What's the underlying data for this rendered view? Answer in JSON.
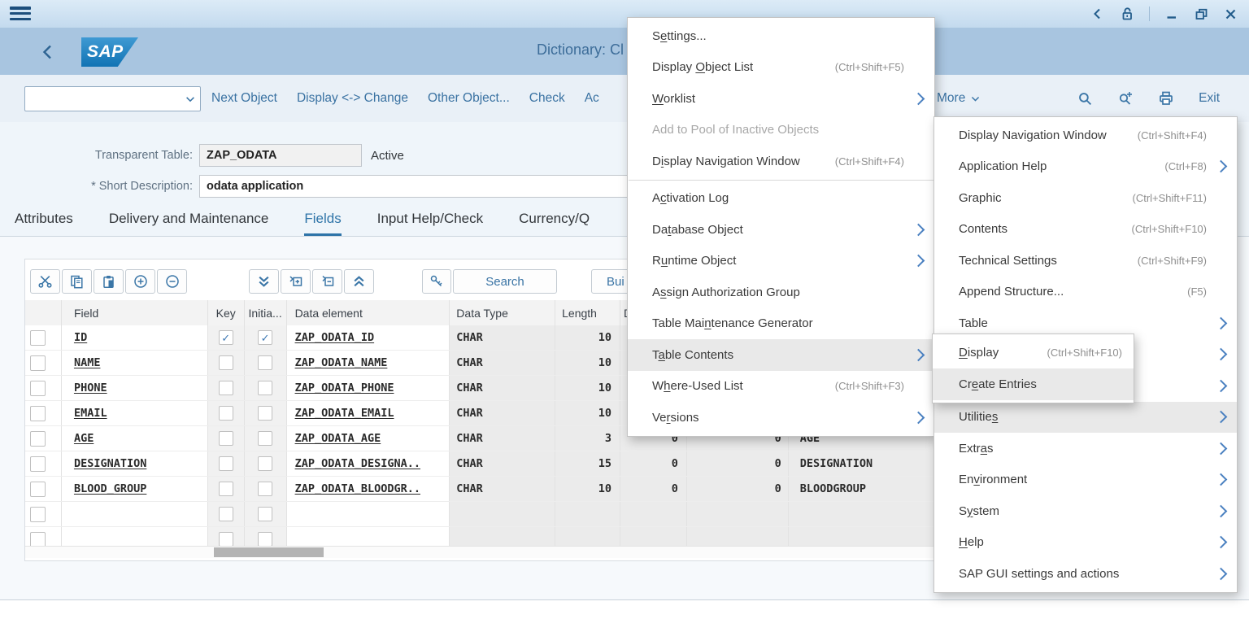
{
  "header": {
    "title": "Dictionary: Cl",
    "logo_text": "SAP"
  },
  "toolbar": {
    "combo_value": "",
    "buttons": [
      {
        "label": "Next Object"
      },
      {
        "label": "Display <-> Change"
      },
      {
        "label": "Other Object..."
      },
      {
        "label": "Check"
      },
      {
        "label": "Ac"
      }
    ],
    "more_label": "More",
    "exit_label": "Exit"
  },
  "form": {
    "table_label": "Transparent Table:",
    "table_value": "ZAP_ODATA",
    "status": "Active",
    "desc_label": "* Short Description:",
    "desc_value": "odata application"
  },
  "tabs": [
    {
      "label": "Attributes"
    },
    {
      "label": "Delivery and Maintenance"
    },
    {
      "label": "Fields",
      "selected": true
    },
    {
      "label": "Input Help/Check"
    },
    {
      "label": "Currency/Q"
    }
  ],
  "grid": {
    "search_label": "Search",
    "build_label": "Bui",
    "columns": {
      "sel": "",
      "field": "Field",
      "key": "Key",
      "init": "Initia...",
      "delem": "Data element",
      "dtype": "Data Type",
      "len": "Length",
      "dec": "D",
      "num2": "",
      "desc": ""
    },
    "rows": [
      {
        "field": "ID",
        "key": "✓",
        "init": "✓",
        "delem": "ZAP_ODATA_ID",
        "dtype": "CHAR",
        "len": "10",
        "dec": "",
        "num2": "",
        "desc": ""
      },
      {
        "field": "NAME",
        "key": "",
        "init": "",
        "delem": "ZAP_ODATA_NAME",
        "dtype": "CHAR",
        "len": "10",
        "dec": "",
        "num2": "",
        "desc": ""
      },
      {
        "field": "PHONE",
        "key": "",
        "init": "",
        "delem": "ZAP_ODATA_PHONE",
        "dtype": "CHAR",
        "len": "10",
        "dec": "",
        "num2": "",
        "desc": ""
      },
      {
        "field": "EMAIL",
        "key": "",
        "init": "",
        "delem": "ZAP_ODATA_EMAIL",
        "dtype": "CHAR",
        "len": "10",
        "dec": "",
        "num2": "",
        "desc": ""
      },
      {
        "field": "AGE",
        "key": "",
        "init": "",
        "delem": "ZAP_ODATA_AGE",
        "dtype": "CHAR",
        "len": "3",
        "dec": "0",
        "num2": "0",
        "desc": "AGE"
      },
      {
        "field": "DESIGNATION",
        "key": "",
        "init": "",
        "delem": "ZAP_ODATA_DESIGNA..",
        "dtype": "CHAR",
        "len": "15",
        "dec": "0",
        "num2": "0",
        "desc": "DESIGNATION"
      },
      {
        "field": "BLOOD_GROUP",
        "key": "",
        "init": "",
        "delem": "ZAP_ODATA_BLOODGR..",
        "dtype": "CHAR",
        "len": "10",
        "dec": "0",
        "num2": "0",
        "desc": "BLOODGROUP"
      },
      {
        "field": "",
        "key": "",
        "init": "",
        "delem": "",
        "dtype": "",
        "len": "",
        "dec": "",
        "num2": "",
        "desc": ""
      },
      {
        "field": "",
        "key": "",
        "init": "",
        "delem": "",
        "dtype": "",
        "len": "",
        "dec": "",
        "num2": "",
        "desc": ""
      }
    ]
  },
  "menus": {
    "menu1": {
      "items": [
        {
          "label": {
            "text": "Settings...",
            "u": 1
          }
        },
        {
          "label": {
            "text": "Display Object List",
            "u": 8
          },
          "shortcut": "(Ctrl+Shift+F5)"
        },
        {
          "label": {
            "text": "Worklist",
            "u": 0
          },
          "sub": true
        },
        {
          "label": {
            "text": "Add to Pool of Inactive Objects"
          },
          "disabled": true
        },
        {
          "label": {
            "text": "Display Navigation Window",
            "u": 1
          },
          "shortcut": "(Ctrl+Shift+F4)"
        },
        {
          "separator": true
        },
        {
          "label": {
            "text": "Activation Log",
            "u": 1
          }
        },
        {
          "label": {
            "text": "Database Object",
            "u": 2
          },
          "sub": true
        },
        {
          "label": {
            "text": "Runtime Object",
            "u": 1
          },
          "sub": true
        },
        {
          "label": {
            "text": "Assign Authorization Group",
            "u": 1
          }
        },
        {
          "label": {
            "text": "Table Maintenance Generator",
            "u": 9
          }
        },
        {
          "label": {
            "text": "Table Contents",
            "u": 1
          },
          "sub": true,
          "hl": true
        },
        {
          "label": {
            "text": "Where-Used List",
            "u": 1
          },
          "shortcut": "(Ctrl+Shift+F3)"
        },
        {
          "label": {
            "text": "Versions",
            "u": 2
          },
          "sub": true
        }
      ]
    },
    "menu2": {
      "items": [
        {
          "label": {
            "text": "Display Navigation Window"
          },
          "shortcut": "(Ctrl+Shift+F4)"
        },
        {
          "label": {
            "text": "Application Help"
          },
          "shortcut": "(Ctrl+F8)",
          "sub": true
        },
        {
          "label": {
            "text": "Graphic"
          },
          "shortcut": "(Ctrl+Shift+F11)"
        },
        {
          "label": {
            "text": "Contents"
          },
          "shortcut": "(Ctrl+Shift+F10)"
        },
        {
          "label": {
            "text": "Technical Settings"
          },
          "shortcut": "(Ctrl+Shift+F9)"
        },
        {
          "label": {
            "text": "Append Structure..."
          },
          "shortcut": "(F5)"
        },
        {
          "label": {
            "text": "Table"
          },
          "sub": true
        },
        {
          "label": {
            "text": ""
          },
          "sub": true
        },
        {
          "label": {
            "text": ""
          },
          "sub": true
        },
        {
          "label": {
            "text": "Utilities",
            "u": 8
          },
          "sub": true,
          "hl": true
        },
        {
          "label": {
            "text": "Extras",
            "u": 4
          },
          "sub": true
        },
        {
          "label": {
            "text": "Environment",
            "u": 2
          },
          "sub": true
        },
        {
          "label": {
            "text": "System",
            "u": 1
          },
          "sub": true
        },
        {
          "label": {
            "text": "Help",
            "u": 0
          },
          "sub": true
        },
        {
          "label": {
            "text": "SAP GUI settings and actions"
          },
          "sub": true
        }
      ]
    },
    "submenu": {
      "items": [
        {
          "label": {
            "text": "Display",
            "u": 0
          },
          "shortcut": "(Ctrl+Shift+F10)"
        },
        {
          "label": {
            "text": "Create Entries",
            "u": 2
          },
          "hl": true
        }
      ]
    }
  }
}
